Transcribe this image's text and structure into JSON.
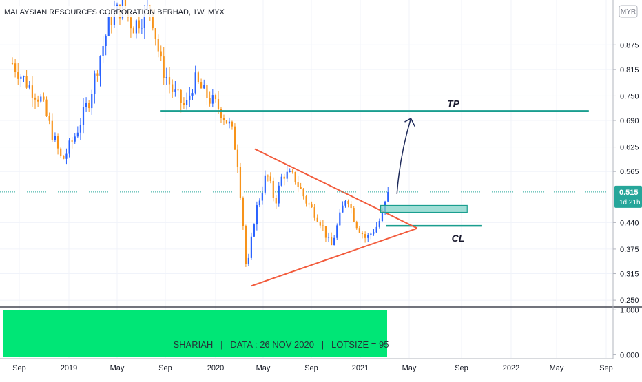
{
  "header": {
    "title": "MALAYSIAN RESOURCES CORPORATION BERHAD, 1W, MYX"
  },
  "currency_button": {
    "label": "MYR"
  },
  "price_tag": {
    "value": "0.515",
    "countdown": "1d 21h"
  },
  "banner": {
    "text": "SHARIAH   |   DATA : 26 NOV 2020   |   LOTSIZE = 95"
  },
  "annotations": {
    "tp": "TP",
    "cl": "CL"
  },
  "colors": {
    "up": "#2962ff",
    "down": "#f7931a",
    "trendline": "#f25b3c",
    "level": "#1a9e8f",
    "zone": "#80d3c8",
    "arrow": "#1e2a5a",
    "banner": "#00e676",
    "last_price": "#26a69a"
  },
  "chart_data": [
    {
      "type": "candlestick",
      "title": "MALAYSIAN RESOURCES CORPORATION BERHAD, 1W, MYX",
      "x_ticks": [
        "Sep",
        "2019",
        "May",
        "Sep",
        "2020",
        "May",
        "Sep",
        "2021",
        "May",
        "Sep",
        "2022",
        "May",
        "Sep"
      ],
      "y_ticks": [
        "0.875",
        "0.815",
        "0.750",
        "0.690",
        "0.625",
        "0.565",
        "0.515",
        "0.440",
        "0.375",
        "0.315",
        "0.250"
      ],
      "ylim": [
        0.235,
        0.985
      ],
      "last_price": 0.515,
      "price_points": [
        {
          "date": "2018-08-15",
          "price": 0.83
        },
        {
          "date": "2018-09-20",
          "price": 0.78
        },
        {
          "date": "2018-10-25",
          "price": 0.74
        },
        {
          "date": "2018-11-20",
          "price": 0.66
        },
        {
          "date": "2018-12-15",
          "price": 0.59
        },
        {
          "date": "2019-01-15",
          "price": 0.65
        },
        {
          "date": "2019-02-20",
          "price": 0.74
        },
        {
          "date": "2019-03-20",
          "price": 0.85
        },
        {
          "date": "2019-04-15",
          "price": 0.94
        },
        {
          "date": "2019-05-15",
          "price": 0.97
        },
        {
          "date": "2019-06-10",
          "price": 0.92
        },
        {
          "date": "2019-07-10",
          "price": 0.95
        },
        {
          "date": "2019-07-25",
          "price": 0.97
        },
        {
          "date": "2019-08-20",
          "price": 0.83
        },
        {
          "date": "2019-09-20",
          "price": 0.76
        },
        {
          "date": "2019-10-20",
          "price": 0.72
        },
        {
          "date": "2019-11-10",
          "price": 0.79
        },
        {
          "date": "2019-12-10",
          "price": 0.75
        },
        {
          "date": "2020-01-10",
          "price": 0.72
        },
        {
          "date": "2020-02-10",
          "price": 0.67
        },
        {
          "date": "2020-02-25",
          "price": 0.6
        },
        {
          "date": "2020-03-10",
          "price": 0.45
        },
        {
          "date": "2020-03-20",
          "price": 0.31
        },
        {
          "date": "2020-04-10",
          "price": 0.46
        },
        {
          "date": "2020-05-10",
          "price": 0.56
        },
        {
          "date": "2020-06-01",
          "price": 0.49
        },
        {
          "date": "2020-06-20",
          "price": 0.56
        },
        {
          "date": "2020-07-20",
          "price": 0.55
        },
        {
          "date": "2020-08-20",
          "price": 0.49
        },
        {
          "date": "2020-09-20",
          "price": 0.45
        },
        {
          "date": "2020-10-20",
          "price": 0.38
        },
        {
          "date": "2020-11-10",
          "price": 0.45
        },
        {
          "date": "2020-11-28",
          "price": 0.51
        },
        {
          "date": "2020-12-20",
          "price": 0.44
        },
        {
          "date": "2021-01-15",
          "price": 0.4
        },
        {
          "date": "2021-02-10",
          "price": 0.43
        },
        {
          "date": "2021-02-25",
          "price": 0.46
        },
        {
          "date": "2021-03-10",
          "price": 0.515
        }
      ],
      "drawings": {
        "tp_level": {
          "price": 0.713,
          "from": "2019-08-20",
          "to": "2022-07-20"
        },
        "cl_level": {
          "price": 0.432,
          "from": "2021-03-05",
          "to": "2021-10-20"
        },
        "upper_trendline": [
          {
            "date": "2020-04-10",
            "price": 0.62
          },
          {
            "date": "2021-05-20",
            "price": 0.426
          }
        ],
        "lower_trendline": [
          {
            "date": "2020-04-01",
            "price": 0.285
          },
          {
            "date": "2021-05-20",
            "price": 0.426
          }
        ],
        "entry_zone": {
          "from": "2021-02-20",
          "to": "2021-09-15",
          "low": 0.465,
          "high": 0.482
        },
        "arrow": [
          {
            "date": "2021-04-01",
            "price": 0.51
          },
          {
            "date": "2021-05-05",
            "price": 0.695
          }
        ]
      }
    },
    {
      "type": "indicator",
      "y_ticks": [
        "1.000",
        "0.000"
      ],
      "ylim": [
        -0.07,
        1.05
      ]
    }
  ]
}
